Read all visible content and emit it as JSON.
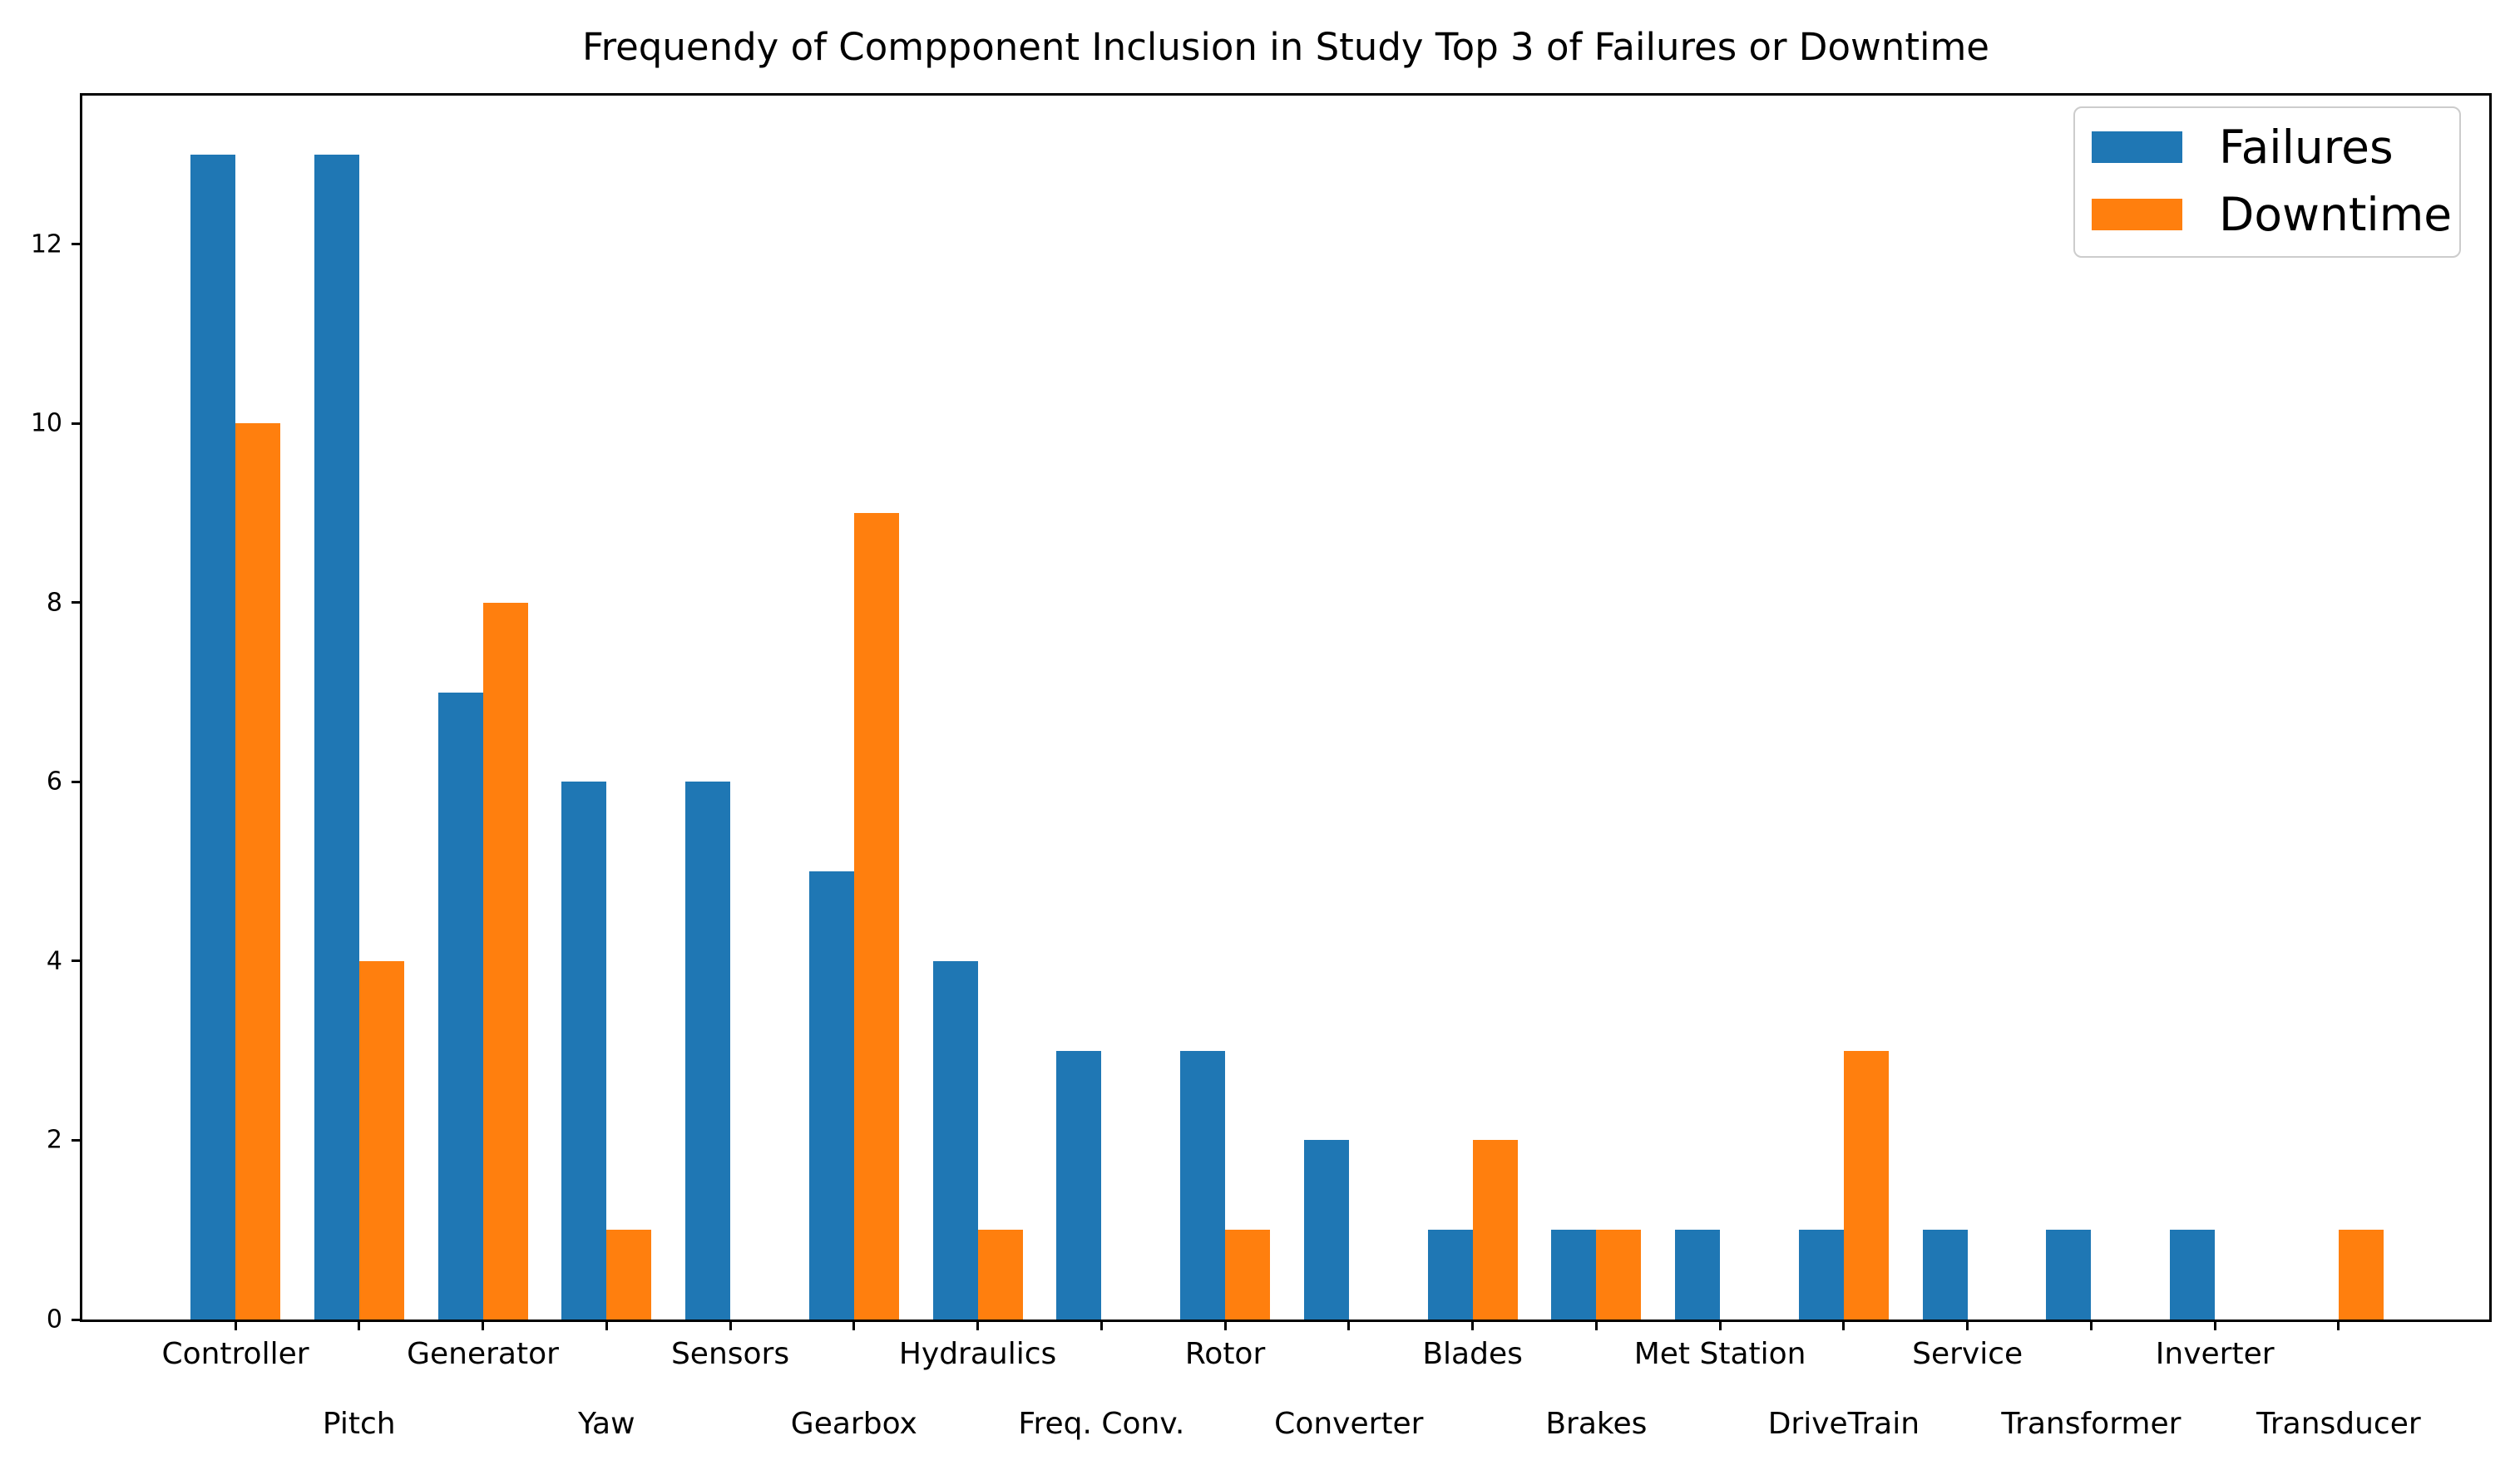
{
  "chart_data": {
    "type": "bar",
    "title": "Frequendy of Compponent Inclusion in Study Top 3 of Failures or Downtime",
    "categories": [
      "Controller",
      "Pitch",
      "Generator",
      "Yaw",
      "Sensors",
      "Gearbox",
      "Hydraulics",
      "Freq. Conv.",
      "Rotor",
      "Converter",
      "Blades",
      "Brakes",
      "Met Station",
      "DriveTrain",
      "Service",
      "Transformer",
      "Inverter",
      "Transducer"
    ],
    "series": [
      {
        "name": "Failures",
        "color": "#1f77b4",
        "values": [
          13,
          13,
          7,
          6,
          6,
          5,
          4,
          3,
          3,
          2,
          1,
          1,
          1,
          1,
          1,
          1,
          1,
          0
        ]
      },
      {
        "name": "Downtime",
        "color": "#ff7f0e",
        "values": [
          10,
          4,
          8,
          1,
          0,
          9,
          1,
          0,
          1,
          0,
          2,
          1,
          0,
          3,
          0,
          0,
          0,
          1
        ]
      }
    ],
    "xlabel": "",
    "ylabel": "",
    "ylim": [
      0,
      13.66
    ],
    "yticks": [
      0,
      2,
      4,
      6,
      8,
      10,
      12
    ],
    "grid": false,
    "legend_position": "upper right",
    "xtick_style": "staggered-two-rows",
    "axis_color": "#000000",
    "text_color": "#000000",
    "background_color": "#ffffff"
  }
}
